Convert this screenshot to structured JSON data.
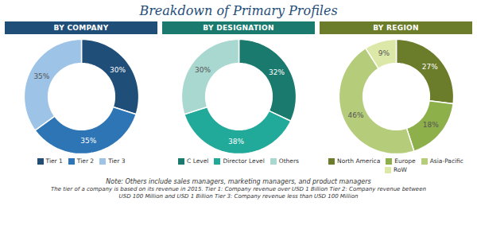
{
  "title": "Breakdown of Primary Profiles",
  "annotations": [
    "Note: Others include sales managers, marketing managers, and product managers",
    "The tier of a company is based on its revenue in 2015.  Tier 1: Company revenue over USD 1 Billion Tier 2: Company revenue between",
    "USD 100 Million and USD 1 Billion Tier 3: Company revenue less than USD 100 Million"
  ],
  "chart_data": [
    {
      "type": "pie",
      "title": "BY COMPANY",
      "categories": [
        "Tier 1",
        "Tier 2",
        "Tier 3"
      ],
      "values": [
        30,
        35,
        35
      ],
      "value_labels": [
        "30%",
        "35%",
        "35%"
      ],
      "colors": [
        "#1f4e79",
        "#2e75b6",
        "#9dc3e6"
      ],
      "data_labels": true,
      "legend": "bottom"
    },
    {
      "type": "pie",
      "title": "BY DESIGNATION",
      "categories": [
        "C Level",
        "Director Level",
        "Others"
      ],
      "values": [
        32,
        38,
        30
      ],
      "value_labels": [
        "32%",
        "38%",
        "30%"
      ],
      "colors": [
        "#1a7a6e",
        "#21a99a",
        "#a8d8d0"
      ],
      "data_labels": true,
      "legend": "bottom"
    },
    {
      "type": "pie",
      "title": "BY REGION",
      "categories": [
        "North America",
        "Europe",
        "Asia-Pacific",
        "RoW"
      ],
      "values": [
        27,
        18,
        46,
        9
      ],
      "value_labels": [
        "27%",
        "18%",
        "46%",
        "9%"
      ],
      "colors": [
        "#6b7c2a",
        "#8db04a",
        "#b5cc7a",
        "#dce8a8"
      ],
      "data_labels": true,
      "legend": "bottom"
    }
  ]
}
